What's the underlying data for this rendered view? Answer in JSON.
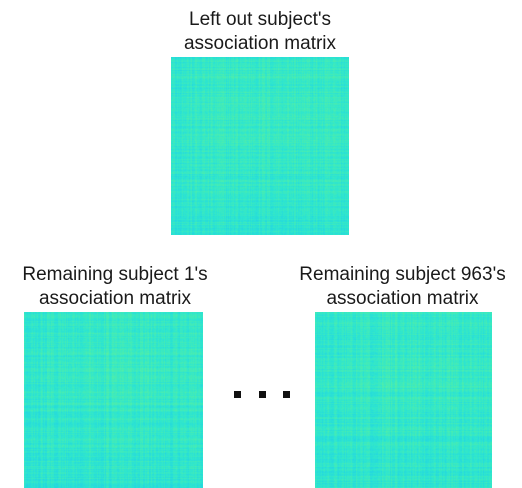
{
  "top_caption": {
    "line1": "Left out subject's",
    "line2": "association matrix"
  },
  "left_caption": {
    "line1": "Remaining subject 1's",
    "line2": "association matrix"
  },
  "right_caption": {
    "line1": "Remaining subject 963's",
    "line2": "association matrix"
  },
  "matrix_colors": {
    "base": "#2ee6cf",
    "low": "#1fd0e8",
    "high": "#58f0a0"
  }
}
